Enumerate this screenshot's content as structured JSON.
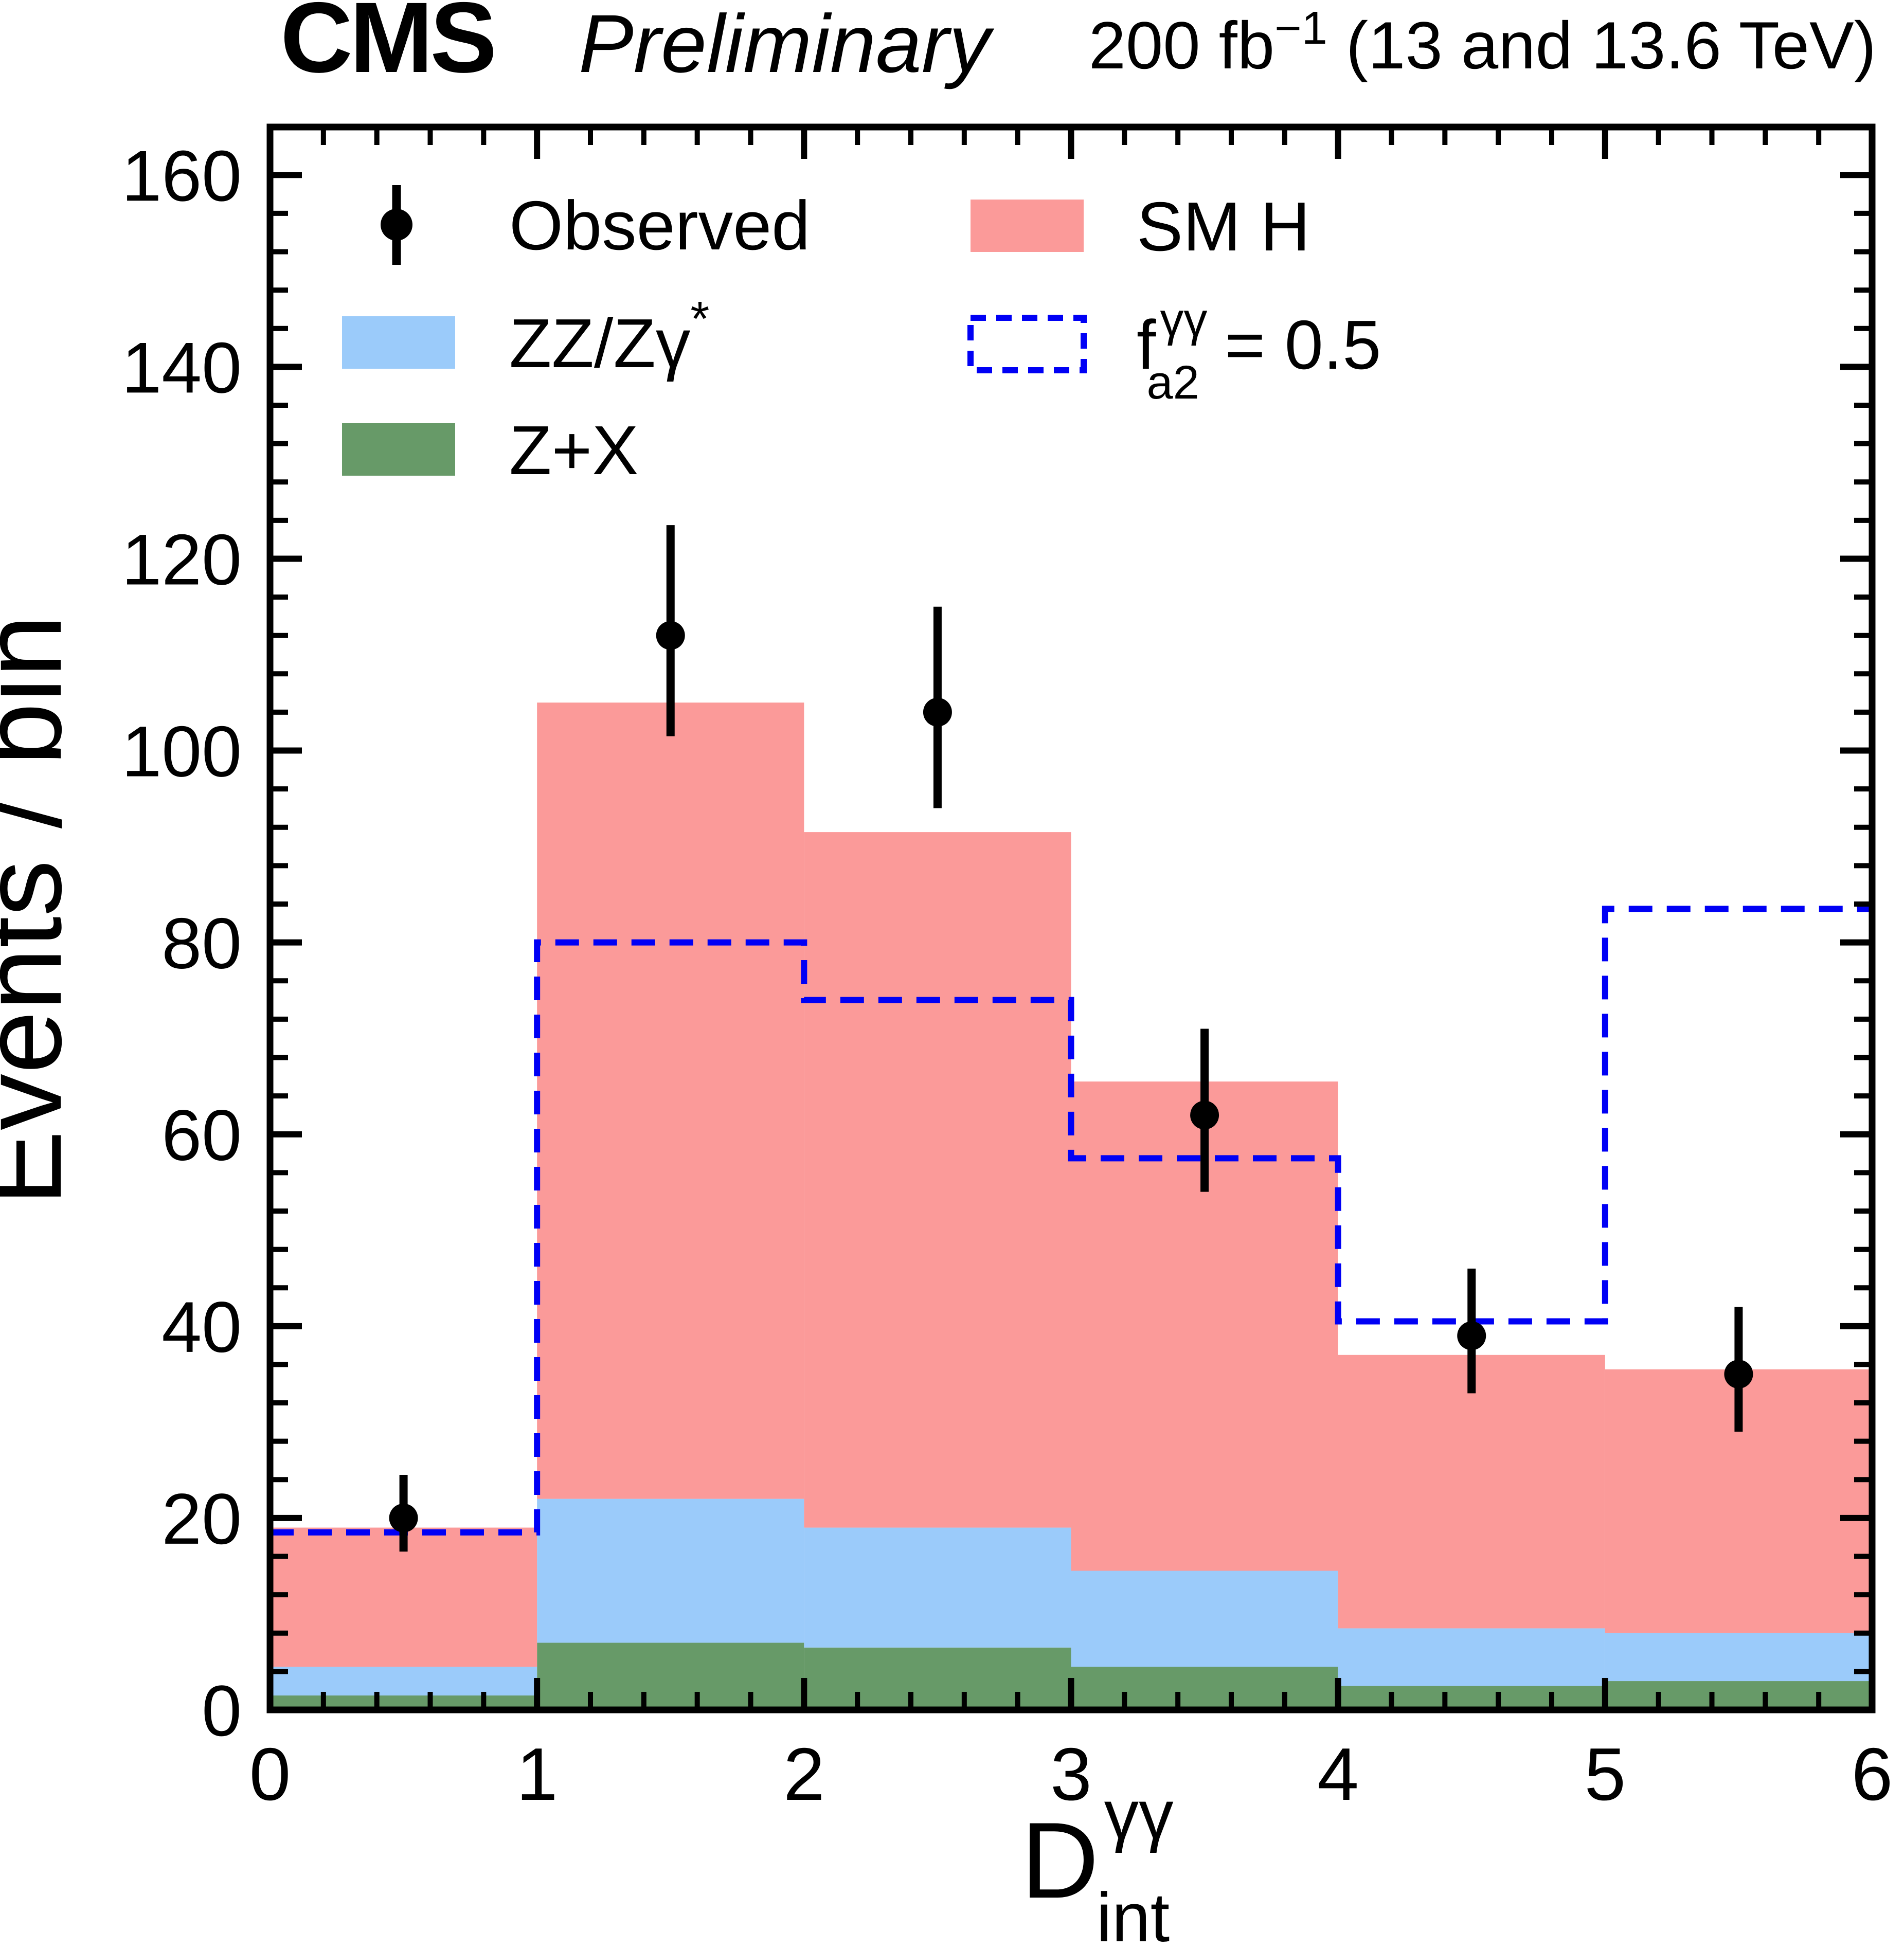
{
  "header": {
    "experiment": "CMS",
    "status": "Preliminary",
    "lumi_prefix": "200 fb",
    "lumi_exp": "−1",
    "lumi_suffix": " (13 and 13.6 TeV)"
  },
  "axes": {
    "y_title": "Events / bin",
    "x_title_base": "D",
    "x_title_sup": "γγ",
    "x_title_sub": "int",
    "x_tick_labels": [
      "0",
      "1",
      "2",
      "3",
      "4",
      "5",
      "6"
    ],
    "y_tick_labels": [
      "0",
      "20",
      "40",
      "60",
      "80",
      "100",
      "120",
      "140",
      "160"
    ]
  },
  "legend": {
    "observed": "Observed",
    "zz_base": "ZZ/Zγ",
    "zz_sup": "*",
    "zx": "Z+X",
    "smh": "SM H",
    "fa2_base": "f",
    "fa2_sup": "γγ",
    "fa2_sub": "a2",
    "fa2_rest": " = 0.5"
  },
  "colors": {
    "sm_h": "#FB9A99",
    "zz": "#9BCBFA",
    "zx": "#679A68",
    "fa2_line": "#0000F5",
    "observed": "#000000",
    "frame": "#000000"
  },
  "chart_data": {
    "type": "bar",
    "stacked": true,
    "title": "",
    "xlabel": "D_int^gammagamma",
    "ylabel": "Events / bin",
    "xlim": [
      0,
      6
    ],
    "ylim": [
      0,
      165
    ],
    "grid": false,
    "legend_position": "top-inside",
    "bin_edges": [
      0,
      1,
      2,
      3,
      4,
      5,
      6
    ],
    "x_major_step": 1,
    "x_minor_step": 0.2,
    "y_major_step": 20,
    "y_minor_step": 4,
    "series": [
      {
        "name": "Z+X",
        "type": "stacked-bar",
        "color_key": "zx",
        "values": [
          1.5,
          7,
          6.5,
          4.5,
          2.5,
          3
        ]
      },
      {
        "name": "ZZ/Zgamma*",
        "type": "stacked-bar",
        "color_key": "zz",
        "values": [
          3,
          15,
          12.5,
          10,
          6,
          5
        ]
      },
      {
        "name": "SM H",
        "type": "stacked-bar",
        "color_key": "sm_h",
        "values": [
          14.5,
          83,
          72.5,
          51,
          28.5,
          27.5
        ]
      },
      {
        "name": "fa2 = 0.5",
        "type": "step-line",
        "dashed": true,
        "color_key": "fa2_line",
        "values": [
          18.5,
          80,
          74,
          57.5,
          40.5,
          83.5
        ]
      },
      {
        "name": "Observed",
        "type": "points",
        "color_key": "observed",
        "x": [
          0.5,
          1.5,
          2.5,
          3.5,
          4.5,
          5.5
        ],
        "y": [
          20,
          112,
          104,
          62,
          39,
          35
        ],
        "err_up": [
          4.5,
          11.5,
          11,
          9,
          7,
          7
        ],
        "err_down": [
          3.5,
          10.5,
          10,
          8,
          6,
          6
        ]
      }
    ],
    "stack_totals": [
      19,
      105,
      91.5,
      65.5,
      37,
      35.5
    ]
  }
}
